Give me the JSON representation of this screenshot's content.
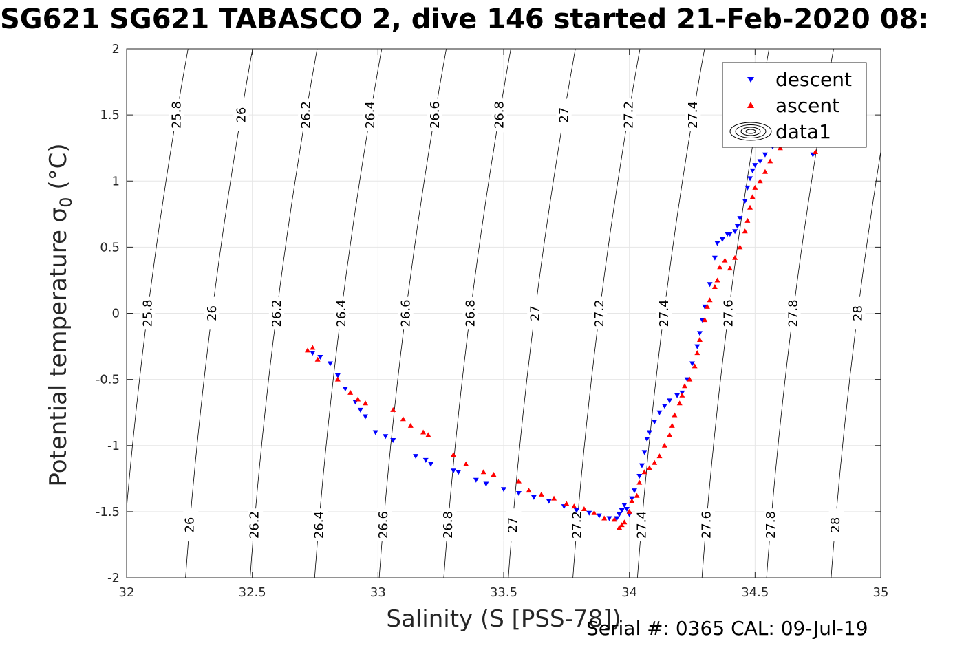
{
  "title": "SG621 SG621 TABASCO 2, dive 146 started 21-Feb-2020 08:",
  "serial_text": "Serial #: 0365  CAL: 09-Jul-19",
  "colors": {
    "descent": "#0000ff",
    "ascent": "#ff0000",
    "grid": "#e6e6e6",
    "axis": "#262626"
  },
  "chart_data": {
    "type": "scatter",
    "xlabel": "Salinity (S [PSS-78])",
    "ylabel_main": "Potential temperature σ",
    "ylabel_sub": "0",
    "ylabel_unit": " (°C)",
    "xlim": [
      32,
      35
    ],
    "ylim": [
      -2,
      2
    ],
    "x_ticks": [
      32,
      32.5,
      33,
      33.5,
      34,
      34.5,
      35
    ],
    "y_ticks": [
      -2,
      -1.5,
      -1,
      -0.5,
      0,
      0.5,
      1,
      1.5,
      2
    ],
    "grid": true,
    "legend_position": "top-right",
    "legend": [
      "descent",
      "ascent",
      "data1"
    ],
    "density_contours": {
      "levels": [
        "25.8",
        "26",
        "26.2",
        "26.4",
        "26.6",
        "26.8",
        "27",
        "27.2",
        "27.4",
        "27.6",
        "27.8",
        "28"
      ],
      "level_values": [
        25.8,
        26.0,
        26.2,
        26.4,
        26.6,
        26.8,
        27.0,
        27.2,
        27.4,
        27.6,
        27.8,
        28.0
      ],
      "label_temps": [
        1.5,
        0.0,
        -1.6
      ]
    },
    "series": [
      {
        "name": "descent",
        "marker": "triangle-down",
        "points": [
          [
            32.74,
            -0.3
          ],
          [
            32.77,
            -0.33
          ],
          [
            32.81,
            -0.38
          ],
          [
            32.84,
            -0.47
          ],
          [
            32.87,
            -0.57
          ],
          [
            32.91,
            -0.67
          ],
          [
            32.93,
            -0.73
          ],
          [
            32.95,
            -0.78
          ],
          [
            32.99,
            -0.9
          ],
          [
            33.03,
            -0.93
          ],
          [
            33.06,
            -0.96
          ],
          [
            33.15,
            -1.08
          ],
          [
            33.19,
            -1.11
          ],
          [
            33.21,
            -1.14
          ],
          [
            33.3,
            -1.19
          ],
          [
            33.32,
            -1.2
          ],
          [
            33.39,
            -1.26
          ],
          [
            33.43,
            -1.29
          ],
          [
            33.5,
            -1.33
          ],
          [
            33.56,
            -1.36
          ],
          [
            33.62,
            -1.39
          ],
          [
            33.68,
            -1.42
          ],
          [
            33.74,
            -1.46
          ],
          [
            33.79,
            -1.49
          ],
          [
            33.84,
            -1.51
          ],
          [
            33.88,
            -1.53
          ],
          [
            33.92,
            -1.55
          ],
          [
            33.95,
            -1.55
          ],
          [
            33.96,
            -1.52
          ],
          [
            33.97,
            -1.49
          ],
          [
            33.98,
            -1.45
          ],
          [
            33.99,
            -1.48
          ],
          [
            34.0,
            -1.52
          ],
          [
            34.01,
            -1.4
          ],
          [
            34.02,
            -1.34
          ],
          [
            34.04,
            -1.23
          ],
          [
            34.05,
            -1.15
          ],
          [
            34.06,
            -1.05
          ],
          [
            34.07,
            -0.95
          ],
          [
            34.08,
            -0.9
          ],
          [
            34.1,
            -0.82
          ],
          [
            34.12,
            -0.75
          ],
          [
            34.14,
            -0.7
          ],
          [
            34.16,
            -0.66
          ],
          [
            34.19,
            -0.62
          ],
          [
            34.21,
            -0.6
          ],
          [
            34.23,
            -0.5
          ],
          [
            34.25,
            -0.38
          ],
          [
            34.27,
            -0.25
          ],
          [
            34.28,
            -0.15
          ],
          [
            34.29,
            -0.05
          ],
          [
            34.3,
            0.05
          ],
          [
            34.32,
            0.22
          ],
          [
            34.34,
            0.42
          ],
          [
            34.35,
            0.53
          ],
          [
            34.37,
            0.56
          ],
          [
            34.39,
            0.6
          ],
          [
            34.4,
            0.6
          ],
          [
            34.42,
            0.62
          ],
          [
            34.43,
            0.66
          ],
          [
            34.44,
            0.72
          ],
          [
            34.46,
            0.85
          ],
          [
            34.47,
            0.95
          ],
          [
            34.48,
            1.02
          ],
          [
            34.49,
            1.08
          ],
          [
            34.5,
            1.12
          ],
          [
            34.52,
            1.15
          ],
          [
            34.54,
            1.2
          ],
          [
            34.57,
            1.26
          ],
          [
            34.6,
            1.33
          ],
          [
            34.64,
            1.52
          ],
          [
            34.7,
            1.88
          ],
          [
            34.73,
            1.2
          ]
        ]
      },
      {
        "name": "ascent",
        "marker": "triangle-up",
        "points": [
          [
            32.72,
            -0.28
          ],
          [
            32.74,
            -0.26
          ],
          [
            32.76,
            -0.35
          ],
          [
            32.84,
            -0.5
          ],
          [
            32.89,
            -0.6
          ],
          [
            32.92,
            -0.65
          ],
          [
            32.95,
            -0.68
          ],
          [
            33.06,
            -0.73
          ],
          [
            33.1,
            -0.8
          ],
          [
            33.13,
            -0.85
          ],
          [
            33.18,
            -0.9
          ],
          [
            33.2,
            -0.92
          ],
          [
            33.3,
            -1.07
          ],
          [
            33.35,
            -1.14
          ],
          [
            33.42,
            -1.2
          ],
          [
            33.46,
            -1.22
          ],
          [
            33.56,
            -1.27
          ],
          [
            33.6,
            -1.34
          ],
          [
            33.65,
            -1.37
          ],
          [
            33.7,
            -1.4
          ],
          [
            33.75,
            -1.44
          ],
          [
            33.78,
            -1.46
          ],
          [
            33.82,
            -1.48
          ],
          [
            33.86,
            -1.51
          ],
          [
            33.9,
            -1.55
          ],
          [
            33.94,
            -1.56
          ],
          [
            33.96,
            -1.62
          ],
          [
            33.97,
            -1.6
          ],
          [
            33.98,
            -1.58
          ],
          [
            34.0,
            -1.5
          ],
          [
            34.01,
            -1.42
          ],
          [
            34.03,
            -1.38
          ],
          [
            34.04,
            -1.28
          ],
          [
            34.06,
            -1.2
          ],
          [
            34.08,
            -1.17
          ],
          [
            34.1,
            -1.13
          ],
          [
            34.12,
            -1.08
          ],
          [
            34.14,
            -1.0
          ],
          [
            34.16,
            -0.92
          ],
          [
            34.17,
            -0.85
          ],
          [
            34.18,
            -0.77
          ],
          [
            34.2,
            -0.68
          ],
          [
            34.21,
            -0.62
          ],
          [
            34.22,
            -0.55
          ],
          [
            34.24,
            -0.5
          ],
          [
            34.26,
            -0.4
          ],
          [
            34.27,
            -0.3
          ],
          [
            34.28,
            -0.2
          ],
          [
            34.3,
            -0.05
          ],
          [
            34.31,
            0.05
          ],
          [
            34.32,
            0.1
          ],
          [
            34.34,
            0.2
          ],
          [
            34.35,
            0.25
          ],
          [
            34.36,
            0.35
          ],
          [
            34.38,
            0.4
          ],
          [
            34.4,
            0.34
          ],
          [
            34.42,
            0.42
          ],
          [
            34.44,
            0.5
          ],
          [
            34.46,
            0.62
          ],
          [
            34.47,
            0.7
          ],
          [
            34.48,
            0.8
          ],
          [
            34.49,
            0.88
          ],
          [
            34.5,
            0.95
          ],
          [
            34.52,
            1.0
          ],
          [
            34.54,
            1.07
          ],
          [
            34.56,
            1.15
          ],
          [
            34.6,
            1.25
          ],
          [
            34.66,
            1.38
          ],
          [
            34.72,
            1.35
          ],
          [
            34.74,
            1.22
          ]
        ]
      }
    ]
  }
}
